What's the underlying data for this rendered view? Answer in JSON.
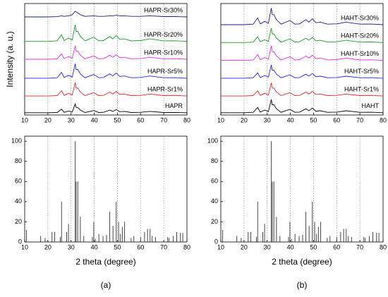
{
  "chart_data": [
    {
      "type": "line",
      "ylabel": "Intensity (a. u.)",
      "xlim": [
        10,
        80
      ],
      "xticks": [
        10,
        20,
        30,
        40,
        50,
        60,
        70,
        80
      ],
      "ylim": [
        0,
        100
      ],
      "grid": true,
      "x": [
        10,
        20,
        24,
        25.9,
        27,
        29,
        30.5,
        31.8,
        32.2,
        32.9,
        34,
        36,
        39.8,
        42,
        44,
        46.7,
        48,
        49.5,
        51,
        53,
        56,
        60,
        64,
        70,
        75,
        80
      ],
      "series": [
        {
          "name": "HAPR",
          "color": "#000000",
          "values": [
            2,
            2,
            2.2,
            5.2,
            2.4,
            3.6,
            2.6,
            10,
            6.8,
            6.8,
            4.4,
            2.2,
            4,
            2.2,
            2.4,
            4.4,
            3.2,
            4.8,
            3,
            3.2,
            2.2,
            2.4,
            3.2,
            2.2,
            2.3,
            2
          ]
        },
        {
          "name": "HAPR-Sr1%",
          "color": "#e8262a",
          "values": [
            17,
            17,
            17.4,
            21.8,
            17.6,
            19.4,
            18,
            29,
            24.2,
            24.2,
            20.6,
            17.4,
            20,
            17.4,
            17.6,
            20.6,
            18.8,
            21.2,
            18.4,
            18.8,
            17.4,
            17.6,
            18.8,
            17.4,
            17.5,
            17
          ]
        },
        {
          "name": "HAPR-Sr5%",
          "color": "#2424e0",
          "values": [
            33,
            33,
            33.4,
            38.2,
            33.7,
            35.6,
            34,
            46,
            40.8,
            40.8,
            36.9,
            33.4,
            36.3,
            33.4,
            33.7,
            36.9,
            35,
            37.6,
            34.6,
            35,
            33.4,
            33.7,
            35,
            33.4,
            33.5,
            33
          ]
        },
        {
          "name": "HAPR-Sr10%",
          "color": "#e62ee6",
          "values": [
            50,
            50,
            50.4,
            54.8,
            50.6,
            52.4,
            51,
            62,
            57.2,
            57.2,
            53.6,
            50.4,
            53,
            50.4,
            50.6,
            53.6,
            51.8,
            54.2,
            51.4,
            51.8,
            50.4,
            50.6,
            51.8,
            50.4,
            50.5,
            50
          ]
        },
        {
          "name": "HAPR-Sr20%",
          "color": "#1a9a2a",
          "values": [
            66,
            66,
            66.5,
            72,
            66.8,
            69,
            67.2,
            81,
            75,
            75,
            70.5,
            66.5,
            69.8,
            66.5,
            66.8,
            70.5,
            68.3,
            71.3,
            67.8,
            68.3,
            66.5,
            66.8,
            68.3,
            66.5,
            66.6,
            66
          ]
        },
        {
          "name": "HAPR-Sr30%",
          "color": "#1a1a80",
          "values": [
            88,
            88,
            88.2,
            89,
            88.5,
            89,
            90,
            93,
            92.5,
            91.5,
            90,
            88.5,
            89,
            88.5,
            88.5,
            89,
            89,
            89.5,
            89,
            89,
            88.5,
            88.5,
            89,
            88.3,
            88.3,
            88
          ]
        }
      ]
    },
    {
      "type": "stick",
      "xlabel": "2 theta (degree)",
      "caption": "(a)",
      "xlim": [
        10,
        80
      ],
      "xticks": [
        10,
        20,
        30,
        40,
        50,
        60,
        70,
        80
      ],
      "ylim": [
        0,
        105
      ],
      "yticks": [
        0,
        20,
        40,
        60,
        80,
        100
      ],
      "grid": true,
      "color": "#333333",
      "x": [
        10.8,
        16.9,
        18.8,
        21.8,
        22.9,
        25.4,
        25.9,
        28.1,
        28.9,
        31.8,
        32.2,
        32.9,
        34.0,
        35.5,
        39.2,
        39.8,
        40.5,
        42.0,
        43.8,
        45.3,
        46.7,
        48.1,
        49.5,
        50.5,
        51.3,
        52.1,
        53.1,
        55.9,
        57.1,
        60.0,
        61.7,
        63.0,
        64.1,
        65.0,
        66.4,
        71.7,
        72.3,
        74.1,
        75.6,
        77.2,
        78.2
      ],
      "values": [
        12,
        6,
        4,
        10,
        10,
        5,
        40,
        10,
        18,
        100,
        60,
        60,
        25,
        6,
        5,
        20,
        3,
        8,
        6,
        7,
        30,
        16,
        40,
        20,
        8,
        15,
        20,
        4,
        6,
        5,
        10,
        13,
        13,
        6,
        5,
        5,
        4,
        6,
        10,
        9,
        9
      ]
    },
    {
      "type": "line",
      "xlim": [
        10,
        80
      ],
      "xticks": [
        10,
        20,
        30,
        40,
        50,
        60,
        70,
        80
      ],
      "ylim": [
        0,
        100
      ],
      "grid": true,
      "x": [
        10,
        20,
        24,
        25.9,
        27,
        29,
        30.5,
        31.8,
        32.2,
        32.9,
        34,
        36,
        39.8,
        42,
        44,
        46.7,
        48,
        49.5,
        51,
        53,
        56,
        60,
        64,
        70,
        75,
        80
      ],
      "series": [
        {
          "name": "HAHT",
          "color": "#000000",
          "values": [
            2,
            2,
            2.4,
            6.8,
            2.6,
            4.4,
            3,
            14,
            9.2,
            9.2,
            5.6,
            2.4,
            5,
            2.4,
            2.6,
            5.6,
            3.8,
            6.2,
            3.4,
            3.8,
            2.4,
            2.6,
            3.8,
            2.4,
            2.5,
            2
          ]
        },
        {
          "name": "HAHT-Sr1%",
          "color": "#e8262a",
          "values": [
            17,
            17,
            17.4,
            21.8,
            17.6,
            19.4,
            18,
            29,
            24.2,
            24.2,
            20.6,
            17.4,
            20,
            17.4,
            17.6,
            20.6,
            18.8,
            21.2,
            18.4,
            18.8,
            17.4,
            17.6,
            18.8,
            17.4,
            17.5,
            17
          ]
        },
        {
          "name": "HAHT-Sr5%",
          "color": "#2424e0",
          "values": [
            33,
            33,
            33.4,
            37.8,
            33.6,
            35.4,
            34,
            45,
            40.2,
            40.2,
            36.6,
            33.4,
            36,
            33.4,
            33.6,
            36.6,
            34.8,
            37.2,
            34.4,
            34.8,
            33.4,
            33.6,
            34.8,
            33.4,
            33.5,
            33
          ]
        },
        {
          "name": "HAHT-Sr10%",
          "color": "#e62ee6",
          "values": [
            49,
            49,
            49.4,
            54.2,
            49.7,
            51.6,
            50,
            62,
            56.8,
            56.8,
            52.9,
            49.4,
            52.3,
            49.4,
            49.7,
            52.9,
            51,
            53.6,
            50.6,
            51,
            49.4,
            49.7,
            51,
            49.4,
            49.5,
            49
          ]
        },
        {
          "name": "HAHT-Sr20%",
          "color": "#1a9a2a",
          "values": [
            65,
            65,
            65.4,
            70.2,
            65.7,
            67.6,
            66,
            78,
            72.8,
            72.8,
            68.9,
            65.4,
            68.3,
            65.4,
            65.7,
            68.9,
            67,
            69.6,
            66.6,
            67,
            65.4,
            65.7,
            67,
            65.4,
            65.5,
            65
          ]
        },
        {
          "name": "HAHT-Sr30%",
          "color": "#1a1a80",
          "values": [
            81,
            81,
            81.5,
            87,
            81.8,
            84,
            82.2,
            96,
            90,
            90,
            85.5,
            81.5,
            84.8,
            81.5,
            81.8,
            85.5,
            83.3,
            86.3,
            82.8,
            83.3,
            81.5,
            81.8,
            83.3,
            81.5,
            81.6,
            81
          ]
        }
      ]
    },
    {
      "type": "stick",
      "xlabel": "2 theta (degree)",
      "caption": "(b)",
      "xlim": [
        10,
        80
      ],
      "xticks": [
        10,
        20,
        30,
        40,
        50,
        60,
        70,
        80
      ],
      "ylim": [
        0,
        105
      ],
      "yticks": [
        0,
        20,
        40,
        60,
        80,
        100
      ],
      "grid": true,
      "color": "#333333",
      "x": [
        10.8,
        16.9,
        18.8,
        21.8,
        22.9,
        25.4,
        25.9,
        28.1,
        28.9,
        31.8,
        32.2,
        32.9,
        34.0,
        35.5,
        39.2,
        39.8,
        40.5,
        42.0,
        43.8,
        45.3,
        46.7,
        48.1,
        49.5,
        50.5,
        51.3,
        52.1,
        53.1,
        55.9,
        57.1,
        60.0,
        61.7,
        63.0,
        64.1,
        65.0,
        66.4,
        71.7,
        72.3,
        74.1,
        75.6,
        77.2,
        78.2
      ],
      "values": [
        12,
        6,
        4,
        10,
        10,
        5,
        40,
        10,
        18,
        100,
        60,
        60,
        25,
        6,
        5,
        20,
        3,
        8,
        6,
        7,
        30,
        16,
        40,
        20,
        8,
        15,
        20,
        4,
        6,
        5,
        10,
        13,
        13,
        6,
        5,
        5,
        4,
        6,
        10,
        9,
        9
      ]
    }
  ]
}
